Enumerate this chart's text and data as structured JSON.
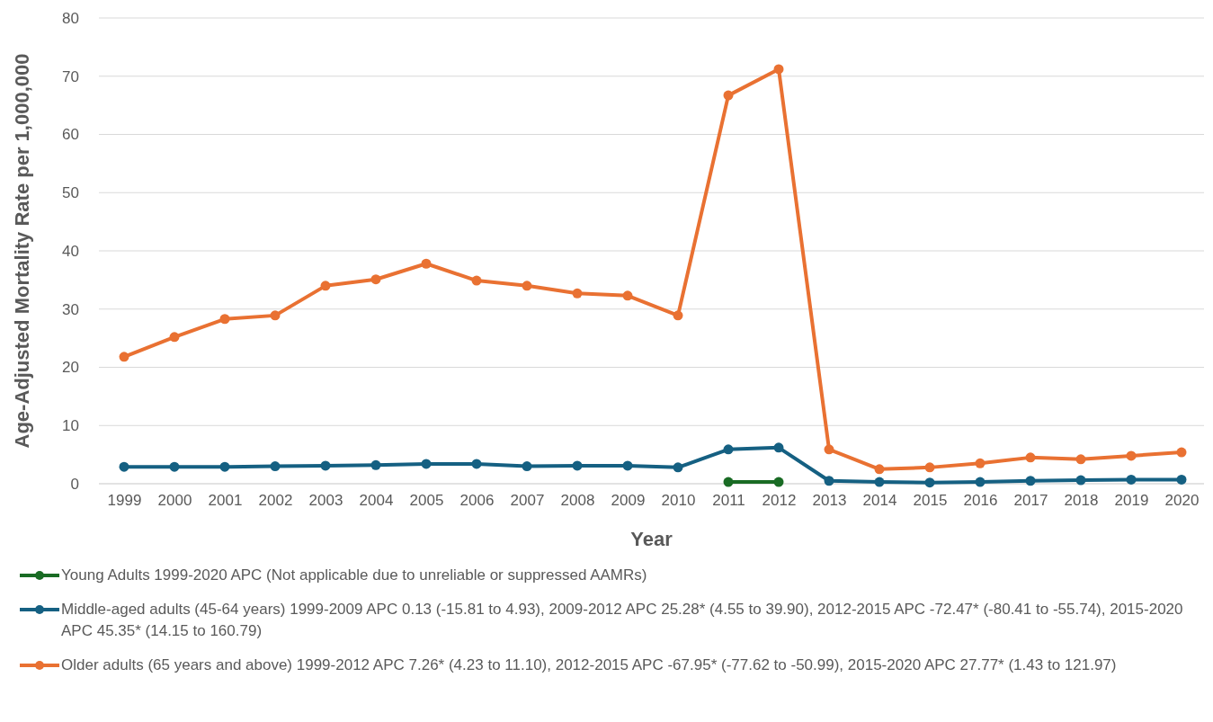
{
  "chart_data": {
    "type": "line",
    "xlabel": "Year",
    "ylabel": "Age-Adjusted Mortality Rate per 1,000,000",
    "categories": [
      "1999",
      "2000",
      "2001",
      "2002",
      "2003",
      "2004",
      "2005",
      "2006",
      "2007",
      "2008",
      "2009",
      "2010",
      "2011",
      "2012",
      "2013",
      "2014",
      "2015",
      "2016",
      "2017",
      "2018",
      "2019",
      "2020"
    ],
    "series": [
      {
        "name": "Young Adults 1999-2020 APC (Not applicable due to unreliable or suppressed AAMRs)",
        "color": "#196b24",
        "values": [
          null,
          null,
          null,
          null,
          null,
          null,
          null,
          null,
          null,
          null,
          null,
          null,
          0.3,
          0.3,
          null,
          null,
          null,
          null,
          null,
          null,
          null,
          null
        ]
      },
      {
        "name": "Middle-aged adults (45-64 years) 1999-2009 APC 0.13 (-15.81 to 4.93), 2009-2012 APC 25.28* (4.55 to 39.90), 2012-2015 APC -72.47* (-80.41 to -55.74), 2015-2020 APC 45.35* (14.15 to 160.79)",
        "color": "#156082",
        "values": [
          2.9,
          2.9,
          2.9,
          3.0,
          3.1,
          3.2,
          3.4,
          3.4,
          3.0,
          3.1,
          3.1,
          2.8,
          5.9,
          6.2,
          0.5,
          0.3,
          0.2,
          0.3,
          0.5,
          0.6,
          0.7,
          0.7
        ]
      },
      {
        "name": "Older adults (65 years and above) 1999-2012 APC 7.26* (4.23 to 11.10), 2012-2015 APC -67.95* (-77.62 to -50.99), 2015-2020 APC 27.77* (1.43 to 121.97)",
        "color": "#e97132",
        "values": [
          21.8,
          25.2,
          28.3,
          28.9,
          34.0,
          35.1,
          37.8,
          34.9,
          34.0,
          32.7,
          32.3,
          28.9,
          66.7,
          71.2,
          5.9,
          2.5,
          2.8,
          3.5,
          4.5,
          4.2,
          4.8,
          5.4
        ]
      }
    ],
    "ylim": [
      0,
      80
    ],
    "yticks": [
      0,
      10,
      20,
      30,
      40,
      50,
      60,
      70,
      80
    ],
    "grid": "y",
    "legend": "bottom",
    "marker": "circle",
    "line_style": "solid"
  }
}
